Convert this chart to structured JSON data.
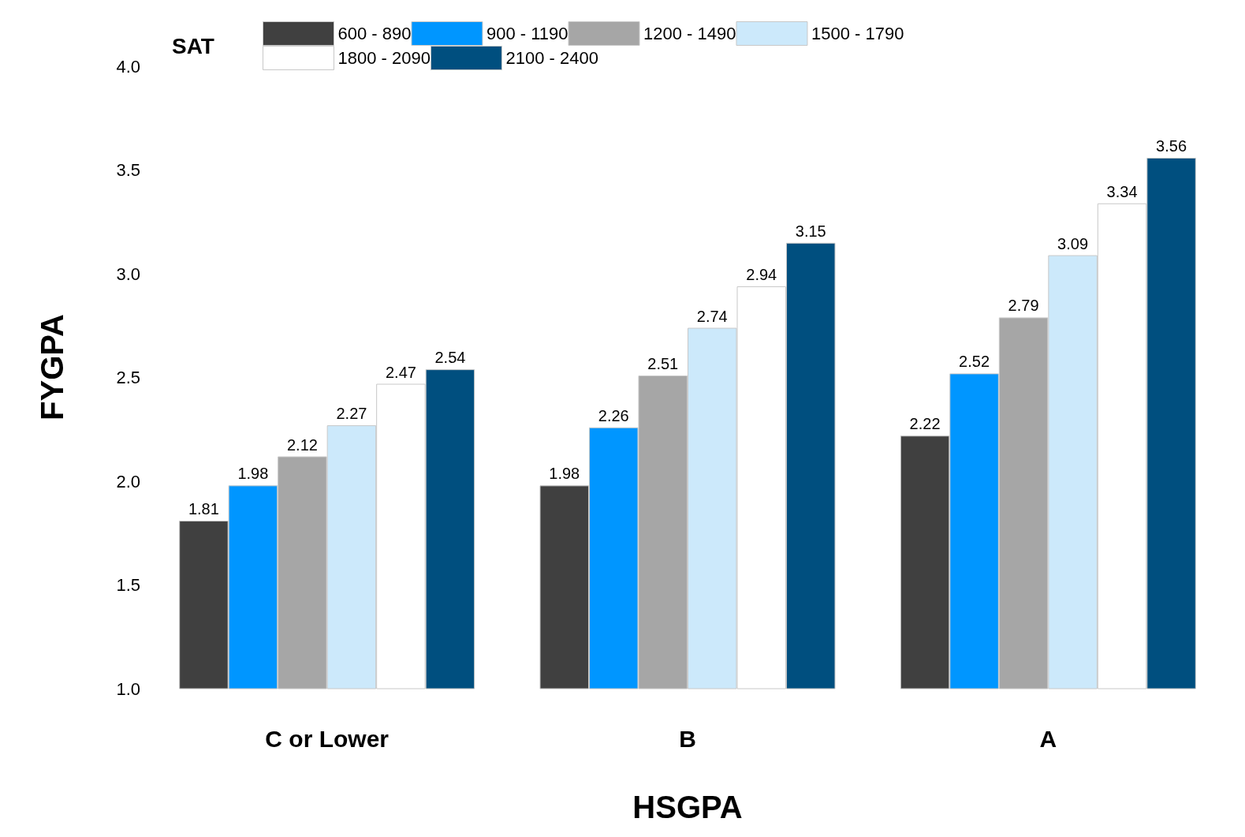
{
  "chart_data": {
    "type": "bar",
    "xlabel": "HSGPA",
    "ylabel": "FYGPA",
    "legend_title": "SAT",
    "categories": [
      "C or Lower",
      "B",
      "A"
    ],
    "series": [
      {
        "name": "600 - 890",
        "color": "#404040",
        "values": [
          1.81,
          1.98,
          2.22
        ]
      },
      {
        "name": "900 - 1190",
        "color": "#0096ff",
        "values": [
          1.98,
          2.26,
          2.52
        ]
      },
      {
        "name": "1200 - 1490",
        "color": "#a6a6a6",
        "values": [
          2.12,
          2.51,
          2.79
        ]
      },
      {
        "name": "1500 - 1790",
        "color": "#cce9fb",
        "values": [
          2.27,
          2.74,
          3.09
        ]
      },
      {
        "name": "1800 - 2090",
        "color": "#ffffff",
        "values": [
          2.47,
          2.94,
          3.34
        ]
      },
      {
        "name": "2100 - 2400",
        "color": "#004f7f",
        "values": [
          2.54,
          3.15,
          3.56
        ]
      }
    ],
    "ylim": [
      1,
      4.1
    ],
    "yticks": [
      {
        "value": 1,
        "label": "1.0"
      },
      {
        "value": 1.5,
        "label": "1.5"
      },
      {
        "value": 2,
        "label": "2.0"
      },
      {
        "value": 2.5,
        "label": "2.5"
      },
      {
        "value": 3,
        "label": "3.0"
      },
      {
        "value": 3.5,
        "label": "3.5"
      },
      {
        "value": 4,
        "label": "4.0"
      }
    ],
    "data_labels": true,
    "grid": false,
    "legend": "top"
  }
}
